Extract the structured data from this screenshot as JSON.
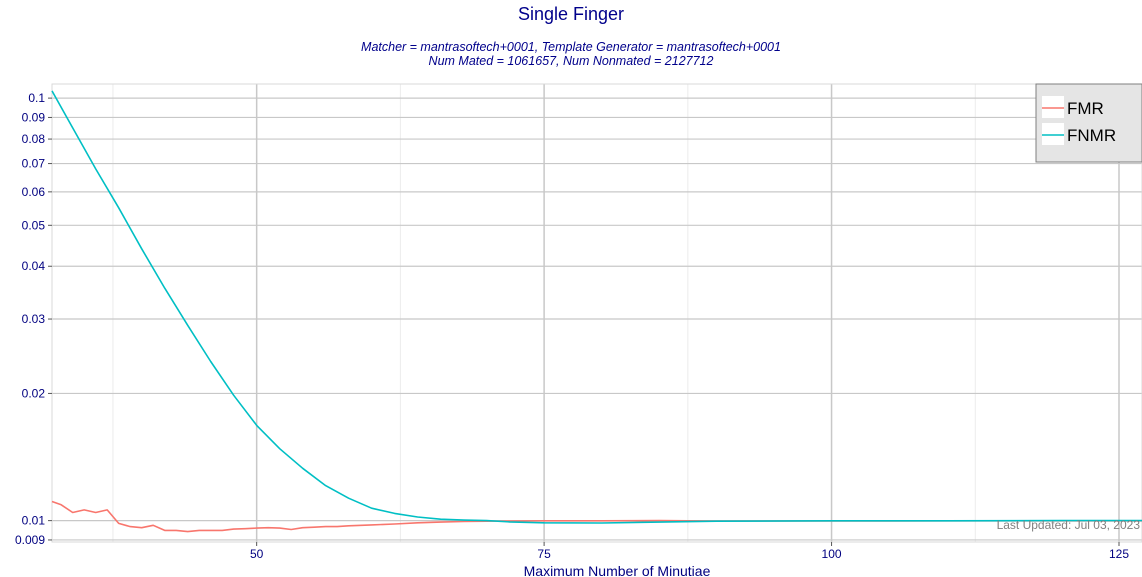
{
  "chart_data": {
    "type": "line",
    "title": "Single Finger",
    "subtitle_lines": [
      "Matcher = mantrasoftech+0001, Template Generator = mantrasoftech+0001",
      "Num Mated = 1061657, Num Nonmated = 2127712"
    ],
    "xlabel": "Maximum Number of Minutiae",
    "ylabel": "",
    "xlim": [
      32.2,
      127
    ],
    "ylim": [
      0.0089,
      0.108
    ],
    "yscale": "log",
    "x_ticks": [
      50,
      75,
      100,
      125
    ],
    "x_tick_labels": [
      "50",
      "75",
      "100",
      "125"
    ],
    "y_ticks": [
      0.009,
      0.01,
      0.02,
      0.03,
      0.04,
      0.05,
      0.06,
      0.07,
      0.08,
      0.09,
      0.1
    ],
    "y_tick_labels": [
      "0.009",
      "0.01",
      "0.02",
      "0.03",
      "0.04",
      "0.05",
      "0.06",
      "0.07",
      "0.08",
      "0.09",
      "0.1"
    ],
    "grid": true,
    "legend_position": "top-right",
    "series": [
      {
        "name": "FMR",
        "color": "#f8766d",
        "x": [
          32.2,
          33,
          34,
          35,
          36,
          37,
          38,
          39,
          40,
          41,
          42,
          43,
          44,
          45,
          46,
          47,
          48,
          49,
          50,
          51,
          52,
          53,
          54,
          55,
          56,
          57,
          58,
          60,
          62,
          64,
          66,
          68,
          70,
          72,
          75,
          80,
          85,
          90,
          100,
          110,
          120,
          127
        ],
        "values": [
          0.0111,
          0.0109,
          0.01045,
          0.0106,
          0.01045,
          0.0106,
          0.00985,
          0.00968,
          0.00962,
          0.00975,
          0.00948,
          0.00948,
          0.00942,
          0.00948,
          0.00948,
          0.00948,
          0.00955,
          0.00957,
          0.0096,
          0.00962,
          0.0096,
          0.00953,
          0.00962,
          0.00965,
          0.00968,
          0.00968,
          0.00972,
          0.00977,
          0.00982,
          0.00988,
          0.00992,
          0.00995,
          0.00997,
          0.00998,
          0.00999,
          0.00999,
          0.01,
          0.00998,
          0.00998,
          0.00999,
          0.00999,
          0.00999
        ]
      },
      {
        "name": "FNMR",
        "color": "#00bfc4",
        "x": [
          32.2,
          34,
          36,
          38,
          40,
          42,
          44,
          46,
          48,
          50,
          52,
          54,
          56,
          58,
          60,
          62,
          64,
          66,
          68,
          70,
          72,
          75,
          80,
          85,
          90,
          100,
          110,
          120,
          127
        ],
        "values": [
          0.104,
          0.085,
          0.068,
          0.055,
          0.044,
          0.0355,
          0.029,
          0.0238,
          0.0198,
          0.0168,
          0.0148,
          0.0133,
          0.0121,
          0.0113,
          0.0107,
          0.0104,
          0.0102,
          0.01008,
          0.01003,
          0.01,
          0.00993,
          0.00988,
          0.00987,
          0.00992,
          0.00997,
          0.00999,
          0.00999,
          0.01,
          0.01
        ]
      }
    ],
    "annotation": "Last Updated: Jul 03, 2023"
  }
}
